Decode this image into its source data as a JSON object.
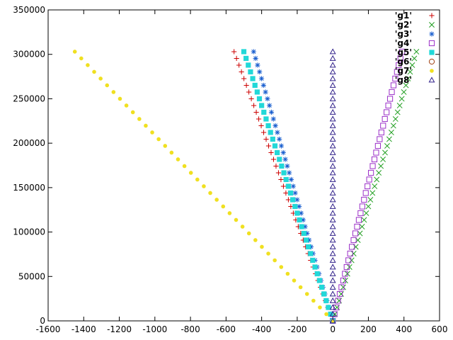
{
  "chart_data": {
    "type": "scatter",
    "title": "",
    "xlabel": "",
    "ylabel": "",
    "xlim": [
      -1600,
      600
    ],
    "ylim": [
      0,
      350000
    ],
    "xticks": [
      -1600,
      -1400,
      -1200,
      -1000,
      -800,
      -600,
      -400,
      -200,
      0,
      200,
      400,
      600
    ],
    "yticks": [
      0,
      50000,
      100000,
      150000,
      200000,
      250000,
      300000,
      350000
    ],
    "grid": false,
    "legend_position": "top-right",
    "series": [
      {
        "name": "'g1'",
        "marker": "plus",
        "color": "#cc0000",
        "x_end": -555,
        "n": 40,
        "y_max": 303000
      },
      {
        "name": "'g2'",
        "marker": "cross",
        "color": "#1f9e1f",
        "x_end": 470,
        "n": 40,
        "y_max": 303000
      },
      {
        "name": "'g3'",
        "marker": "star",
        "color": "#1a5fcf",
        "x_end": -445,
        "n": 40,
        "y_max": 303000
      },
      {
        "name": "'g4'",
        "marker": "open-square",
        "color": "#9b30c8",
        "x_end": 390,
        "n": 40,
        "y_max": 303000
      },
      {
        "name": "'g5'",
        "marker": "filled-square",
        "color": "#22d8d8",
        "x_end": -500,
        "n": 40,
        "y_max": 303000
      },
      {
        "name": "'g6'",
        "marker": "open-circle",
        "color": "#a04010",
        "x_end": 0,
        "n": 0,
        "y_max": 303000
      },
      {
        "name": "'g7'",
        "marker": "filled-circle",
        "color": "#f0e020",
        "x_end": -1450,
        "n": 40,
        "y_max": 303000
      },
      {
        "name": "'g8'",
        "marker": "open-triangle",
        "color": "#30208a",
        "x_end": 0,
        "n": 40,
        "y_max": 303000
      }
    ]
  }
}
